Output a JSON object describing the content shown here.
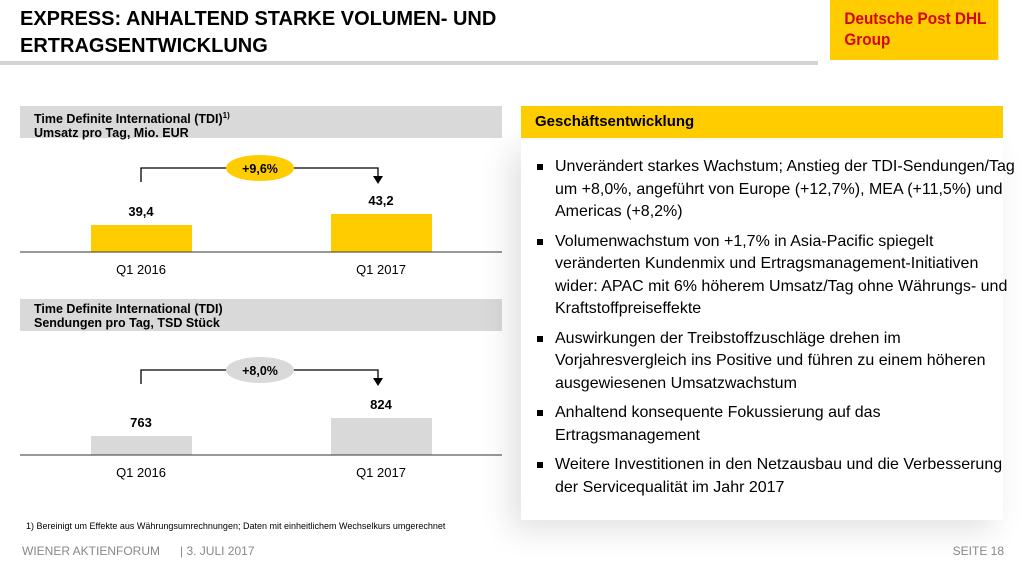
{
  "title": "EXPRESS: ANHALTEND STARKE VOLUMEN- UND ERTRAGSENTWICKLUNG",
  "logo": "Deutsche Post DHL Group",
  "chart_data": [
    {
      "type": "bar",
      "title": "Time Definite International (TDI)",
      "title_sup": "1)",
      "subtitle": "Umsatz pro Tag, Mio. EUR",
      "categories": [
        "Q1 2016",
        "Q1 2017"
      ],
      "values": [
        39.4,
        43.2
      ],
      "labels": [
        "39,4",
        "43,2"
      ],
      "growth": "+9,6%",
      "color": "#ffcc00",
      "growth_color": "#ffcc00"
    },
    {
      "type": "bar",
      "title": "Time Definite International (TDI)",
      "subtitle": "Sendungen pro Tag, TSD Stück",
      "categories": [
        "Q1 2016",
        "Q1 2017"
      ],
      "values": [
        763,
        824
      ],
      "labels": [
        "763",
        "824"
      ],
      "growth": "+8,0%",
      "color": "#d9d9d9",
      "growth_color": "#d9d9d9"
    }
  ],
  "panel": {
    "heading": "Geschäftsentwicklung",
    "bullets": [
      "Unverändert starkes Wachstum; Anstieg der TDI-Sendungen/Tag um +8,0%, angeführt von Europe (+12,7%), MEA (+11,5%) und Americas (+8,2%)",
      "Volumenwachstum von +1,7% in Asia-Pacific spiegelt veränderten Kundenmix und Ertragsmanagement-Initiativen wider: APAC mit 6% höherem Umsatz/Tag ohne Währungs- und Kraftstoffpreiseffekte",
      "Auswirkungen der Treibstoffzuschläge drehen im Vorjahresvergleich ins Positive und führen zu einem höheren ausgewiesenen Umsatzwachstum",
      "Anhaltend konsequente Fokussierung auf das Ertragsmanagement",
      "Weitere Investitionen in den Netzausbau und die Verbesserung der Servicequalität im Jahr 2017"
    ]
  },
  "footnote": "1) Bereinigt um Effekte aus Währungsumrechnungen; Daten mit einheitlichem Wechselkurs umgerechnet",
  "footer": {
    "event": "WIENER AKTIENFORUM",
    "date": "| 3. JULI 2017",
    "page": "SEITE 18"
  }
}
